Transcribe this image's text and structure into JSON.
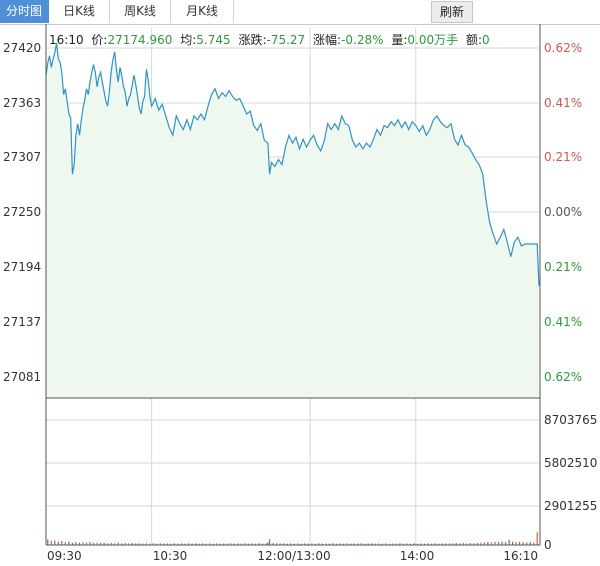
{
  "tabs": [
    {
      "label": "分时图",
      "active": true
    },
    {
      "label": "日K线",
      "active": false
    },
    {
      "label": "周K线",
      "active": false
    },
    {
      "label": "月K线",
      "active": false
    }
  ],
  "refresh_label": "刷新",
  "info": {
    "time": "16:10",
    "price_label": "价:",
    "price": "27174.960",
    "avg_label": "均:",
    "avg": "5.745",
    "change_label": "涨跌:",
    "change": "-75.27",
    "pct_label": "涨幅:",
    "pct": "-0.28%",
    "vol_label": "量:",
    "vol": "0.00万手",
    "amt_label": "额:",
    "amt": "0"
  },
  "colors": {
    "line": "#2f93c9",
    "fill": "#eef8ef",
    "up": "#d9534f",
    "down": "#2e9b3c",
    "grid": "#d7d7d7",
    "axis_text": "#333333",
    "pct_up": "#d9534f",
    "pct_flat": "#555555",
    "pct_down": "#2e9b3c"
  },
  "chart_data": {
    "type": "line",
    "price_axis": {
      "ticks": [
        27420,
        27363,
        27307,
        27250,
        27194,
        27137,
        27081
      ],
      "tick_labels": [
        "27420",
        "27363",
        "27307",
        "27250",
        "27194",
        "27137",
        "27081"
      ],
      "ylim": [
        27081,
        27420
      ]
    },
    "pct_axis": {
      "tick_labels": [
        "0.62%",
        "0.41%",
        "0.21%",
        "0.00%",
        "-0.21%",
        "-0.41%",
        "-0.62%"
      ],
      "display_labels": [
        "0.62%",
        "0.41%",
        "0.21%",
        "0.00%",
        "0.21%",
        "0.41%",
        "0.62%"
      ]
    },
    "x_axis": {
      "tick_labels": [
        "09:30",
        "10:30",
        "12:00/13:00",
        "14:00",
        "16:10"
      ],
      "tick_times": [
        0,
        60,
        150,
        210,
        280
      ]
    },
    "volume_axis": {
      "tick_labels": [
        "8703765",
        "5802510",
        "2901255",
        "0"
      ],
      "ylim": [
        0,
        8703765
      ]
    },
    "price_series": [
      [
        0,
        27392
      ],
      [
        1,
        27405
      ],
      [
        2,
        27412
      ],
      [
        3,
        27400
      ],
      [
        4,
        27408
      ],
      [
        5,
        27415
      ],
      [
        6,
        27425
      ],
      [
        7,
        27409
      ],
      [
        8,
        27405
      ],
      [
        9,
        27395
      ],
      [
        10,
        27372
      ],
      [
        11,
        27378
      ],
      [
        12,
        27365
      ],
      [
        13,
        27352
      ],
      [
        14,
        27348
      ],
      [
        15,
        27290
      ],
      [
        16,
        27300
      ],
      [
        17,
        27330
      ],
      [
        18,
        27342
      ],
      [
        19,
        27330
      ],
      [
        20,
        27345
      ],
      [
        21,
        27358
      ],
      [
        22,
        27366
      ],
      [
        23,
        27378
      ],
      [
        24,
        27372
      ],
      [
        25,
        27385
      ],
      [
        26,
        27395
      ],
      [
        27,
        27403
      ],
      [
        28,
        27395
      ],
      [
        29,
        27380
      ],
      [
        30,
        27390
      ],
      [
        31,
        27395
      ],
      [
        32,
        27385
      ],
      [
        33,
        27375
      ],
      [
        34,
        27365
      ],
      [
        35,
        27360
      ],
      [
        36,
        27375
      ],
      [
        37,
        27395
      ],
      [
        38,
        27408
      ],
      [
        39,
        27416
      ],
      [
        40,
        27398
      ],
      [
        41,
        27385
      ],
      [
        42,
        27400
      ],
      [
        43,
        27392
      ],
      [
        44,
        27380
      ],
      [
        45,
        27375
      ],
      [
        46,
        27360
      ],
      [
        47,
        27368
      ],
      [
        48,
        27372
      ],
      [
        49,
        27382
      ],
      [
        50,
        27392
      ],
      [
        51,
        27382
      ],
      [
        52,
        27370
      ],
      [
        53,
        27358
      ],
      [
        54,
        27352
      ],
      [
        55,
        27365
      ],
      [
        56,
        27370
      ],
      [
        57,
        27398
      ],
      [
        58,
        27388
      ],
      [
        59,
        27370
      ],
      [
        60,
        27360
      ],
      [
        62,
        27368
      ],
      [
        64,
        27356
      ],
      [
        66,
        27362
      ],
      [
        68,
        27350
      ],
      [
        70,
        27338
      ],
      [
        72,
        27330
      ],
      [
        74,
        27350
      ],
      [
        76,
        27342
      ],
      [
        78,
        27336
      ],
      [
        80,
        27346
      ],
      [
        82,
        27336
      ],
      [
        84,
        27350
      ],
      [
        86,
        27346
      ],
      [
        88,
        27352
      ],
      [
        90,
        27346
      ],
      [
        92,
        27360
      ],
      [
        94,
        27372
      ],
      [
        96,
        27378
      ],
      [
        98,
        27368
      ],
      [
        100,
        27374
      ],
      [
        102,
        27370
      ],
      [
        104,
        27376
      ],
      [
        106,
        27370
      ],
      [
        108,
        27366
      ],
      [
        110,
        27368
      ],
      [
        112,
        27360
      ],
      [
        114,
        27352
      ],
      [
        116,
        27355
      ],
      [
        118,
        27340
      ],
      [
        120,
        27335
      ],
      [
        122,
        27342
      ],
      [
        124,
        27325
      ],
      [
        126,
        27322
      ],
      [
        127,
        27290
      ],
      [
        128,
        27302
      ],
      [
        130,
        27298
      ],
      [
        132,
        27305
      ],
      [
        134,
        27300
      ],
      [
        136,
        27318
      ],
      [
        138,
        27330
      ],
      [
        140,
        27322
      ],
      [
        142,
        27328
      ],
      [
        144,
        27316
      ],
      [
        146,
        27326
      ],
      [
        148,
        27318
      ],
      [
        150,
        27325
      ],
      [
        152,
        27330
      ],
      [
        154,
        27320
      ],
      [
        156,
        27314
      ],
      [
        158,
        27324
      ],
      [
        160,
        27342
      ],
      [
        162,
        27336
      ],
      [
        164,
        27342
      ],
      [
        166,
        27336
      ],
      [
        168,
        27350
      ],
      [
        170,
        27342
      ],
      [
        172,
        27340
      ],
      [
        174,
        27325
      ],
      [
        176,
        27318
      ],
      [
        178,
        27322
      ],
      [
        180,
        27316
      ],
      [
        182,
        27322
      ],
      [
        184,
        27318
      ],
      [
        186,
        27326
      ],
      [
        188,
        27336
      ],
      [
        190,
        27330
      ],
      [
        192,
        27340
      ],
      [
        194,
        27338
      ],
      [
        196,
        27344
      ],
      [
        198,
        27340
      ],
      [
        200,
        27346
      ],
      [
        202,
        27338
      ],
      [
        204,
        27344
      ],
      [
        206,
        27336
      ],
      [
        208,
        27344
      ],
      [
        210,
        27340
      ],
      [
        212,
        27334
      ],
      [
        214,
        27340
      ],
      [
        216,
        27330
      ],
      [
        218,
        27336
      ],
      [
        220,
        27346
      ],
      [
        222,
        27350
      ],
      [
        224,
        27344
      ],
      [
        226,
        27340
      ],
      [
        228,
        27338
      ],
      [
        230,
        27342
      ],
      [
        232,
        27326
      ],
      [
        234,
        27320
      ],
      [
        236,
        27330
      ],
      [
        238,
        27320
      ],
      [
        240,
        27318
      ],
      [
        242,
        27312
      ],
      [
        244,
        27305
      ],
      [
        246,
        27300
      ],
      [
        248,
        27290
      ],
      [
        250,
        27262
      ],
      [
        252,
        27240
      ],
      [
        254,
        27228
      ],
      [
        256,
        27218
      ],
      [
        258,
        27225
      ],
      [
        260,
        27233
      ],
      [
        262,
        27220
      ],
      [
        264,
        27205
      ],
      [
        266,
        27220
      ],
      [
        268,
        27225
      ],
      [
        270,
        27216
      ],
      [
        272,
        27218
      ],
      [
        274,
        27218
      ],
      [
        276,
        27218
      ],
      [
        278,
        27218
      ],
      [
        279,
        27218
      ],
      [
        280,
        27175
      ]
    ],
    "volume_series": [
      [
        1,
        1.0
      ],
      [
        3,
        0.7
      ],
      [
        5,
        0.8
      ],
      [
        7,
        0.6
      ],
      [
        9,
        0.7
      ],
      [
        11,
        0.5
      ],
      [
        13,
        0.6
      ],
      [
        15,
        0.4
      ],
      [
        17,
        0.5
      ],
      [
        19,
        0.4
      ],
      [
        21,
        0.45
      ],
      [
        23,
        0.4
      ],
      [
        25,
        0.5
      ],
      [
        27,
        0.35
      ],
      [
        29,
        0.4
      ],
      [
        31,
        0.35
      ],
      [
        33,
        0.4
      ],
      [
        35,
        0.3
      ],
      [
        37,
        0.35
      ],
      [
        39,
        0.3
      ],
      [
        41,
        0.4
      ],
      [
        43,
        0.3
      ],
      [
        45,
        0.35
      ],
      [
        47,
        0.3
      ],
      [
        49,
        0.35
      ],
      [
        51,
        0.3
      ],
      [
        53,
        0.3
      ],
      [
        55,
        0.25
      ],
      [
        57,
        0.3
      ],
      [
        59,
        0.25
      ],
      [
        61,
        0.3
      ],
      [
        63,
        0.25
      ],
      [
        65,
        0.3
      ],
      [
        67,
        0.25
      ],
      [
        69,
        0.28
      ],
      [
        71,
        0.25
      ],
      [
        73,
        0.3
      ],
      [
        75,
        0.25
      ],
      [
        77,
        0.28
      ],
      [
        79,
        0.25
      ],
      [
        81,
        0.3
      ],
      [
        83,
        0.25
      ],
      [
        85,
        0.28
      ],
      [
        87,
        0.25
      ],
      [
        89,
        0.3
      ],
      [
        91,
        0.25
      ],
      [
        93,
        0.28
      ],
      [
        95,
        0.25
      ],
      [
        97,
        0.3
      ],
      [
        99,
        0.25
      ],
      [
        101,
        0.28
      ],
      [
        103,
        0.25
      ],
      [
        105,
        0.3
      ],
      [
        107,
        0.25
      ],
      [
        109,
        0.28
      ],
      [
        111,
        0.25
      ],
      [
        113,
        0.3
      ],
      [
        115,
        0.25
      ],
      [
        117,
        0.28
      ],
      [
        119,
        0.25
      ],
      [
        121,
        0.3
      ],
      [
        123,
        0.25
      ],
      [
        125,
        0.3
      ],
      [
        126,
        0.45
      ],
      [
        127,
        1.0
      ],
      [
        129,
        0.35
      ],
      [
        131,
        0.3
      ],
      [
        133,
        0.28
      ],
      [
        135,
        0.3
      ],
      [
        137,
        0.25
      ],
      [
        139,
        0.3
      ],
      [
        141,
        0.25
      ],
      [
        143,
        0.28
      ],
      [
        145,
        0.25
      ],
      [
        147,
        0.3
      ],
      [
        149,
        0.25
      ],
      [
        151,
        0.28
      ],
      [
        153,
        0.25
      ],
      [
        155,
        0.3
      ],
      [
        157,
        0.25
      ],
      [
        159,
        0.28
      ],
      [
        161,
        0.25
      ],
      [
        163,
        0.3
      ],
      [
        165,
        0.25
      ],
      [
        167,
        0.28
      ],
      [
        169,
        0.25
      ],
      [
        171,
        0.3
      ],
      [
        173,
        0.25
      ],
      [
        175,
        0.28
      ],
      [
        177,
        0.25
      ],
      [
        179,
        0.3
      ],
      [
        181,
        0.25
      ],
      [
        183,
        0.28
      ],
      [
        185,
        0.3
      ],
      [
        187,
        0.25
      ],
      [
        189,
        0.28
      ],
      [
        191,
        0.25
      ],
      [
        193,
        0.3
      ],
      [
        195,
        0.25
      ],
      [
        197,
        0.28
      ],
      [
        199,
        0.25
      ],
      [
        201,
        0.3
      ],
      [
        203,
        0.25
      ],
      [
        205,
        0.28
      ],
      [
        207,
        0.25
      ],
      [
        209,
        0.3
      ],
      [
        211,
        0.25
      ],
      [
        213,
        0.28
      ],
      [
        215,
        0.25
      ],
      [
        217,
        0.3
      ],
      [
        219,
        0.25
      ],
      [
        221,
        0.28
      ],
      [
        223,
        0.25
      ],
      [
        225,
        0.3
      ],
      [
        227,
        0.25
      ],
      [
        229,
        0.28
      ],
      [
        231,
        0.3
      ],
      [
        233,
        0.35
      ],
      [
        235,
        0.3
      ],
      [
        237,
        0.35
      ],
      [
        239,
        0.3
      ],
      [
        241,
        0.35
      ],
      [
        243,
        0.3
      ],
      [
        245,
        0.35
      ],
      [
        247,
        0.4
      ],
      [
        249,
        0.45
      ],
      [
        251,
        0.5
      ],
      [
        253,
        0.45
      ],
      [
        255,
        0.55
      ],
      [
        257,
        0.5
      ],
      [
        259,
        0.6
      ],
      [
        261,
        0.5
      ],
      [
        263,
        0.9
      ],
      [
        265,
        0.6
      ],
      [
        267,
        0.5
      ],
      [
        269,
        0.55
      ],
      [
        271,
        0.5
      ],
      [
        273,
        0.45
      ],
      [
        275,
        0.5
      ],
      [
        277,
        0.4
      ],
      [
        279,
        2.2
      ]
    ],
    "volume_unit_max": 8703765,
    "volume_scale": 400000
  }
}
